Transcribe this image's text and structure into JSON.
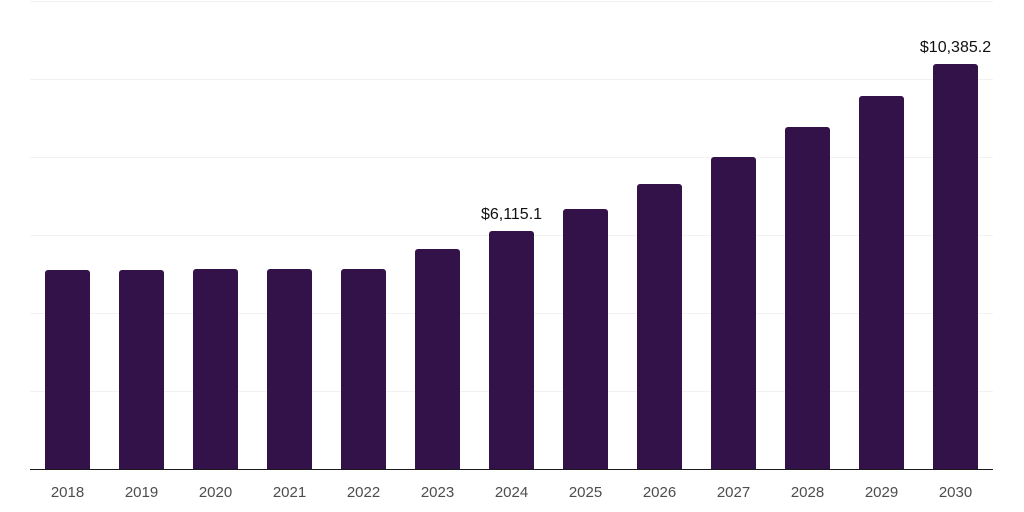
{
  "chart_data": {
    "type": "bar",
    "title": "",
    "xlabel": "",
    "ylabel": "",
    "categories": [
      "2018",
      "2019",
      "2020",
      "2021",
      "2022",
      "2023",
      "2024",
      "2025",
      "2026",
      "2027",
      "2028",
      "2029",
      "2030"
    ],
    "values": [
      5110,
      5110,
      5140,
      5140,
      5140,
      5630,
      6115.1,
      6680,
      7320,
      8000,
      8760,
      9560,
      10385.2
    ],
    "data_labels": [
      {
        "category": "2024",
        "text": "$6,115.1"
      },
      {
        "category": "2030",
        "text": "$10,385.2"
      }
    ],
    "ylim": [
      0,
      12000
    ],
    "gridline_step": 2000,
    "grid": "horizontal-only",
    "legend": "none",
    "y_tick_labels_visible": false,
    "colors": {
      "bar": "#331249",
      "axis_line": "#1a1a1a",
      "gridline": "#f2f2f2",
      "tick_label": "#4d4d4d",
      "data_label": "#111111",
      "background": "#ffffff"
    }
  }
}
